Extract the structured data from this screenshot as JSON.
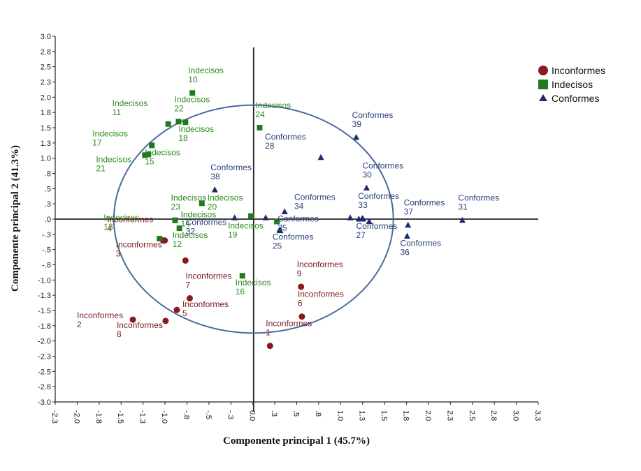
{
  "chart_data": {
    "type": "scatter",
    "title": "",
    "xlabel": "Componente principal 1 (45.7%)",
    "ylabel": "Componente principal 2 (41.3%)",
    "xlim": [
      -2.3,
      3.3
    ],
    "ylim": [
      -3.0,
      3.0
    ],
    "xticks": [
      "-2.3",
      "-2.0",
      "-1.8",
      "-1.5",
      "-1.3",
      "-1.0",
      "-.8",
      "-.5",
      "-.3",
      "0.0",
      ".3",
      ".5",
      ".8",
      "1.0",
      "1.3",
      "1.5",
      "1.8",
      "2.0",
      "2.3",
      "2.5",
      "2.8",
      "3.0",
      "3.3"
    ],
    "yticks": [
      "3.0",
      "2.8",
      "2.5",
      "2.3",
      "2.0",
      "1.8",
      "1.5",
      "1.3",
      "1.0",
      ".8",
      ".5",
      ".3",
      ".0",
      "-.3",
      "-.5",
      "-.8",
      "-1.0",
      "-1.3",
      "-1.5",
      "-1.8",
      "-2.0",
      "-2.3",
      "-2.5",
      "-2.8",
      "-3.0"
    ],
    "circle": {
      "cx": 0.0,
      "cy": 0.0,
      "rx": 1.62,
      "ry": 1.87
    },
    "legend": {
      "placement": "top-right",
      "entries": [
        {
          "name": "Inconformes",
          "marker": "circle",
          "color": "#8b1a1f"
        },
        {
          "name": "Indecisos",
          "marker": "square",
          "color": "#1f7a1f"
        },
        {
          "name": "Conformes",
          "marker": "triangle",
          "color": "#1d2c6b"
        }
      ]
    },
    "series": [
      {
        "name": "Inconformes",
        "marker": "circle",
        "color": "#8b1a1f",
        "label_color": "#7b1a1f",
        "points": [
          {
            "id": "1",
            "x": 0.19,
            "y": -2.08,
            "anchor": "upper"
          },
          {
            "id": "2",
            "x": -1.4,
            "y": -1.65,
            "anchor": "left"
          },
          {
            "id": "3",
            "x": -1.03,
            "y": -0.35,
            "anchor": "lower-left"
          },
          {
            "id": "4",
            "x": -1.05,
            "y": -0.35,
            "anchor": "upper-left"
          },
          {
            "id": "5",
            "x": -0.89,
            "y": -1.49,
            "anchor": "right"
          },
          {
            "id": "6",
            "x": 0.56,
            "y": -1.6,
            "anchor": "upper"
          },
          {
            "id": "7",
            "x": -0.74,
            "y": -1.3,
            "anchor": "upper"
          },
          {
            "id": "8",
            "x": -1.02,
            "y": -1.67,
            "anchor": "lower-left"
          },
          {
            "id": "9",
            "x": 0.55,
            "y": -1.11,
            "anchor": "upper"
          },
          {
            "id": "",
            "x": -0.79,
            "y": -0.68,
            "anchor": "none"
          }
        ]
      },
      {
        "name": "Indecisos",
        "marker": "square",
        "color": "#1f7a1f",
        "label_color": "#2e8b1e",
        "points": [
          {
            "id": "10",
            "x": -0.71,
            "y": 2.07,
            "anchor": "upper"
          },
          {
            "id": "11",
            "x": -0.99,
            "y": 1.56,
            "anchor": "upper-left"
          },
          {
            "id": "12",
            "x": -0.86,
            "y": -0.15,
            "anchor": "lower"
          },
          {
            "id": "13",
            "x": -1.09,
            "y": -0.32,
            "anchor": "upper-left"
          },
          {
            "id": "14",
            "x": -0.91,
            "y": -0.02,
            "anchor": "right"
          },
          {
            "id": "15",
            "x": -1.18,
            "y": 1.21,
            "anchor": "lower"
          },
          {
            "id": "16",
            "x": -0.13,
            "y": -0.93,
            "anchor": "lower"
          },
          {
            "id": "17",
            "x": -1.22,
            "y": 1.06,
            "anchor": "upper-left"
          },
          {
            "id": "18",
            "x": -0.79,
            "y": 1.59,
            "anchor": "lower"
          },
          {
            "id": "19",
            "x": 0.27,
            "y": -0.04,
            "anchor": "lower-left"
          },
          {
            "id": "20",
            "x": -0.6,
            "y": 0.26,
            "anchor": "right"
          },
          {
            "id": "21",
            "x": -1.26,
            "y": 1.05,
            "anchor": "lower-left"
          },
          {
            "id": "22",
            "x": -0.87,
            "y": 1.6,
            "anchor": "upper"
          },
          {
            "id": "23",
            "x": -0.91,
            "y": -0.02,
            "anchor": "upper"
          },
          {
            "id": "24",
            "x": 0.07,
            "y": 1.5,
            "anchor": "upper"
          },
          {
            "id": "",
            "x": -0.03,
            "y": 0.05,
            "anchor": "none"
          }
        ]
      },
      {
        "name": "Conformes",
        "marker": "triangle",
        "color": "#1d2c6b",
        "label_color": "#2a3f7a",
        "points": [
          {
            "id": "25",
            "x": 0.3,
            "y": -0.18,
            "anchor": "lower"
          },
          {
            "id": "27",
            "x": 1.27,
            "y": 0.0,
            "anchor": "lower"
          },
          {
            "id": "28",
            "x": 0.78,
            "y": 1.01,
            "anchor": "upper-left"
          },
          {
            "id": "30",
            "x": 1.31,
            "y": 0.51,
            "anchor": "upper"
          },
          {
            "id": "31",
            "x": 2.42,
            "y": -0.02,
            "anchor": "upper"
          },
          {
            "id": "32",
            "x": -0.22,
            "y": 0.02,
            "anchor": "lower-left"
          },
          {
            "id": "33",
            "x": 1.26,
            "y": 0.01,
            "anchor": "upper"
          },
          {
            "id": "34",
            "x": 1.12,
            "y": 0.02,
            "anchor": "upper-left"
          },
          {
            "id": "35",
            "x": 0.36,
            "y": 0.12,
            "anchor": "lower"
          },
          {
            "id": "36",
            "x": 1.78,
            "y": -0.28,
            "anchor": "lower"
          },
          {
            "id": "37",
            "x": 1.79,
            "y": -0.1,
            "anchor": "upper"
          },
          {
            "id": "38",
            "x": -0.45,
            "y": 0.48,
            "anchor": "upper"
          },
          {
            "id": "39",
            "x": 1.19,
            "y": 1.34,
            "anchor": "upper"
          },
          {
            "id": "",
            "x": 0.14,
            "y": 0.02,
            "anchor": "none"
          },
          {
            "id": "",
            "x": 0.31,
            "y": -0.19,
            "anchor": "none"
          },
          {
            "id": "",
            "x": 1.34,
            "y": -0.04,
            "anchor": "none"
          },
          {
            "id": "",
            "x": 1.22,
            "y": 0.0,
            "anchor": "none"
          }
        ]
      }
    ]
  }
}
